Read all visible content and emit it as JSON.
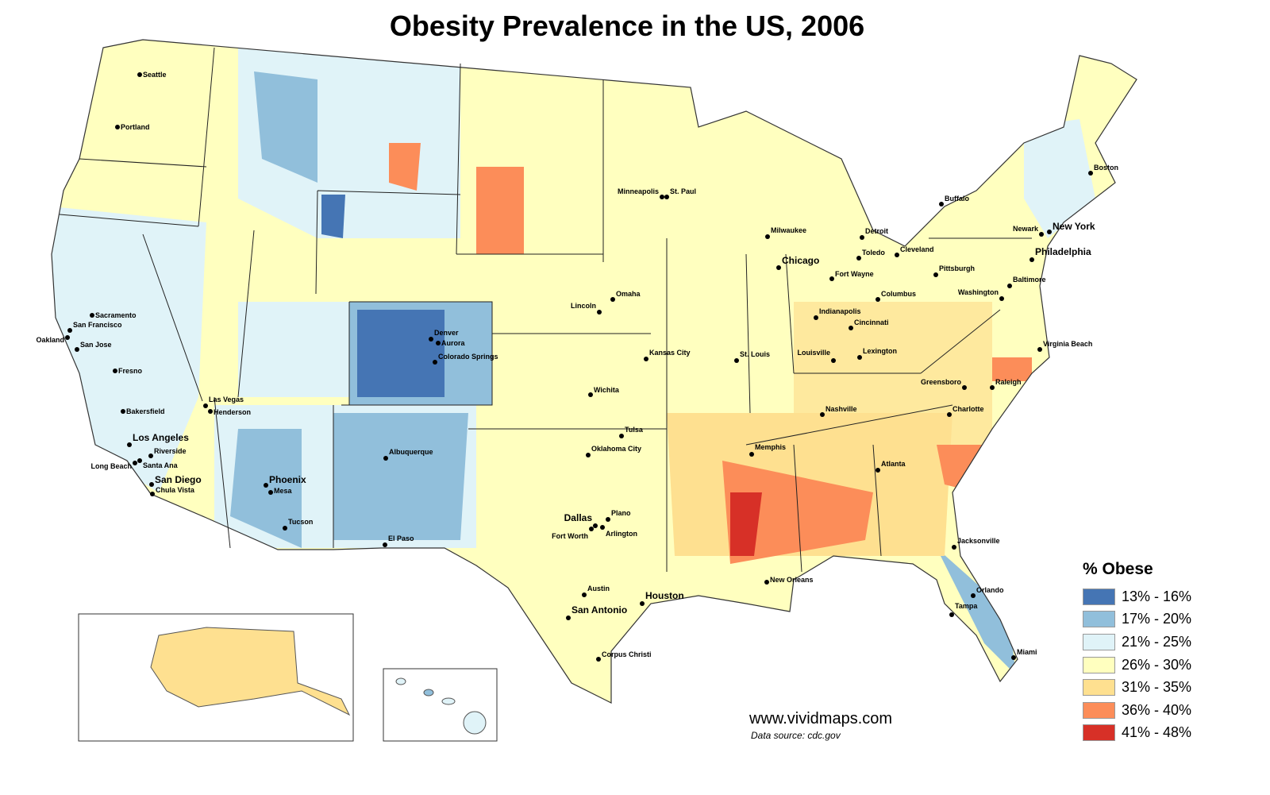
{
  "title": "Obesity Prevalence in the US, 2006",
  "legend": {
    "title": "% Obese",
    "items": [
      {
        "label": "13% - 16%",
        "color": "#4575b4"
      },
      {
        "label": "17% - 20%",
        "color": "#91bfdb"
      },
      {
        "label": "21% - 25%",
        "color": "#e0f3f8"
      },
      {
        "label": "26% - 30%",
        "color": "#ffffbf"
      },
      {
        "label": "31% - 35%",
        "color": "#fee090"
      },
      {
        "label": "36% - 40%",
        "color": "#fc8d59"
      },
      {
        "label": "41% - 48%",
        "color": "#d73027"
      }
    ]
  },
  "cities": [
    "Seattle",
    "Portland",
    "Sacramento",
    "San Francisco",
    "Oakland",
    "San Jose",
    "Fresno",
    "Bakersfield",
    "Las Vegas",
    "Henderson",
    "Los Angeles",
    "Riverside",
    "Santa Ana",
    "Long Beach",
    "San Diego",
    "Chula Vista",
    "Phoenix",
    "Mesa",
    "Tucson",
    "El Paso",
    "Albuquerque",
    "Denver",
    "Aurora",
    "Colorado Springs",
    "Minneapolis",
    "St. Paul",
    "Omaha",
    "Lincoln",
    "Kansas City",
    "Wichita",
    "Tulsa",
    "Oklahoma City",
    "Dallas",
    "Plano",
    "Arlington",
    "Fort Worth",
    "Austin",
    "San Antonio",
    "Houston",
    "Corpus Christi",
    "Milwaukee",
    "Chicago",
    "St. Louis",
    "Memphis",
    "New Orleans",
    "Louisville",
    "Lexington",
    "Nashville",
    "Atlanta",
    "Indianapolis",
    "Fort Wayne",
    "Cincinnati",
    "Columbus",
    "Toledo",
    "Detroit",
    "Cleveland",
    "Pittsburgh",
    "Buffalo",
    "Charlotte",
    "Greensboro",
    "Raleigh",
    "Virginia Beach",
    "Washington",
    "Baltimore",
    "Philadelphia",
    "Newark",
    "New York",
    "Boston",
    "Jacksonville",
    "Orlando",
    "Tampa",
    "Miami"
  ],
  "credit": {
    "site": "www.vividmaps.com",
    "source": "Data source: cdc.gov"
  }
}
